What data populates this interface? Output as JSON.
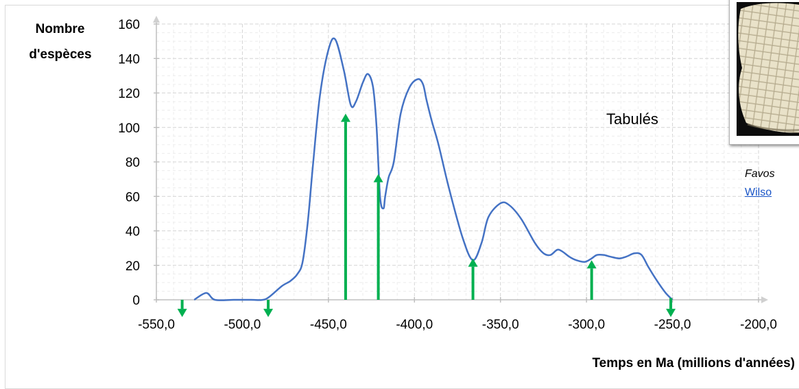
{
  "chart_data": {
    "type": "line",
    "ylabel_lines": [
      "Nombre",
      "d'espèces"
    ],
    "xlabel": "Temps en Ma (millions d'années)",
    "xlim": [
      -550,
      -200
    ],
    "ylim": [
      0,
      160
    ],
    "x_ticks": [
      -550,
      -500,
      -450,
      -400,
      -350,
      -300,
      -250,
      -200
    ],
    "x_tick_labels": [
      "-550,0",
      "-500,0",
      "-450,0",
      "-400,0",
      "-350,0",
      "-300,0",
      "-250,0",
      "-200,0"
    ],
    "y_ticks": [
      0,
      20,
      40,
      60,
      80,
      100,
      120,
      140,
      160
    ],
    "grid": true,
    "series": [
      {
        "color": "#4472c4",
        "x": [
          -528,
          -521,
          -516,
          -505,
          -495,
          -488,
          -484,
          -477,
          -472,
          -468,
          -465,
          -462,
          -459,
          -455,
          -450,
          -446,
          -441,
          -437,
          -434,
          -430,
          -427,
          -424,
          -422,
          -420,
          -418,
          -417,
          -415,
          -412,
          -408,
          -403,
          -398,
          -395,
          -393,
          -390,
          -386,
          -380,
          -372,
          -366,
          -361,
          -357,
          -350,
          -345,
          -338,
          -330,
          -325,
          -321,
          -317,
          -314,
          -310,
          -306,
          -301,
          -297,
          -294,
          -290,
          -286,
          -281,
          -277,
          -272,
          -268,
          -264,
          -259,
          -254,
          -250
        ],
        "y": [
          0,
          4,
          0,
          0,
          0,
          0,
          2,
          8,
          11,
          15,
          22,
          45,
          78,
          118,
          145,
          151,
          133,
          113,
          115,
          126,
          131,
          123,
          100,
          60,
          53,
          60,
          71,
          80,
          108,
          123,
          128,
          125,
          116,
          104,
          90,
          65,
          36,
          23,
          33,
          48,
          56,
          55,
          47,
          33,
          27,
          26,
          29,
          28,
          25,
          23,
          22,
          24,
          26,
          26,
          25,
          24,
          25,
          27,
          26,
          19,
          11,
          4,
          0
        ]
      }
    ],
    "arrows": [
      {
        "x": -535,
        "from": 0,
        "to": -10,
        "direction": "down"
      },
      {
        "x": -485,
        "from": 0,
        "to": -10,
        "direction": "down"
      },
      {
        "x": -440,
        "from": 0,
        "to": 108,
        "direction": "up"
      },
      {
        "x": -421,
        "from": 0,
        "to": 73,
        "direction": "up"
      },
      {
        "x": -366,
        "from": 0,
        "to": 24,
        "direction": "up"
      },
      {
        "x": -297,
        "from": 0,
        "to": 23,
        "direction": "up"
      },
      {
        "x": -251,
        "from": 1,
        "to": -10,
        "direction": "down"
      }
    ],
    "arrow_color": "#00b050",
    "annotations": [
      {
        "text": "Tabulés",
        "x": -290,
        "y": 100
      }
    ]
  },
  "photo": {
    "caption_name": "Favos",
    "caption_credit": "Wilso"
  }
}
